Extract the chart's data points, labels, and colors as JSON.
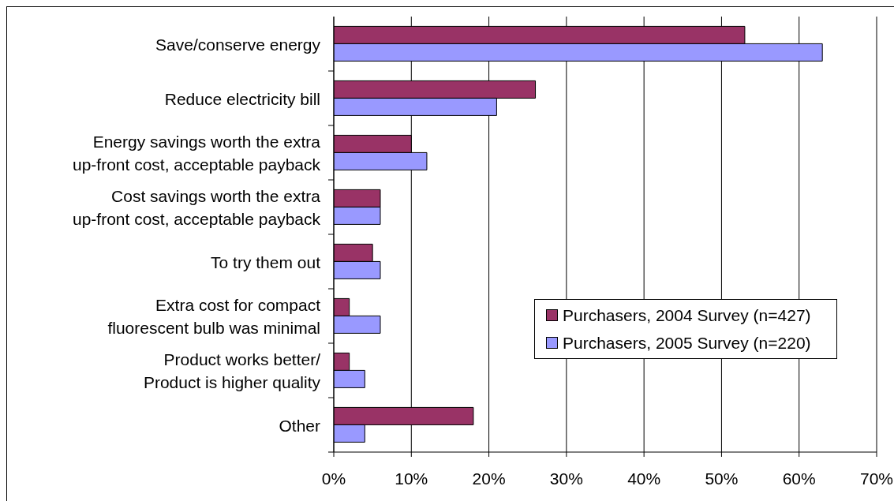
{
  "chart_data": {
    "type": "bar",
    "orientation": "horizontal",
    "categories": [
      "Save/conserve energy",
      "Reduce electricity bill",
      "Energy savings worth the extra\nup-front cost, acceptable payback",
      "Cost savings worth the extra\nup-front cost, acceptable payback",
      "To try them out",
      "Extra cost for compact\nfluorescent bulb was minimal",
      "Product works better/\nProduct is higher quality",
      "Other"
    ],
    "series": [
      {
        "name": "Purchasers, 2004 Survey (n=427)",
        "color": "#993366",
        "values": [
          53,
          26,
          10,
          6,
          5,
          2,
          2,
          18
        ]
      },
      {
        "name": "Purchasers, 2005 Survey (n=220)",
        "color": "#9999ff",
        "values": [
          63,
          21,
          12,
          6,
          6,
          6,
          4,
          4
        ]
      }
    ],
    "xlim": [
      0,
      70
    ],
    "xticks": [
      {
        "value": 0,
        "label": "0%"
      },
      {
        "value": 10,
        "label": "10%"
      },
      {
        "value": 20,
        "label": "20%"
      },
      {
        "value": 30,
        "label": "30%"
      },
      {
        "value": 40,
        "label": "40%"
      },
      {
        "value": 50,
        "label": "50%"
      },
      {
        "value": 60,
        "label": "60%"
      },
      {
        "value": 70,
        "label": "70%"
      }
    ],
    "grid": "x",
    "legend": "right"
  }
}
